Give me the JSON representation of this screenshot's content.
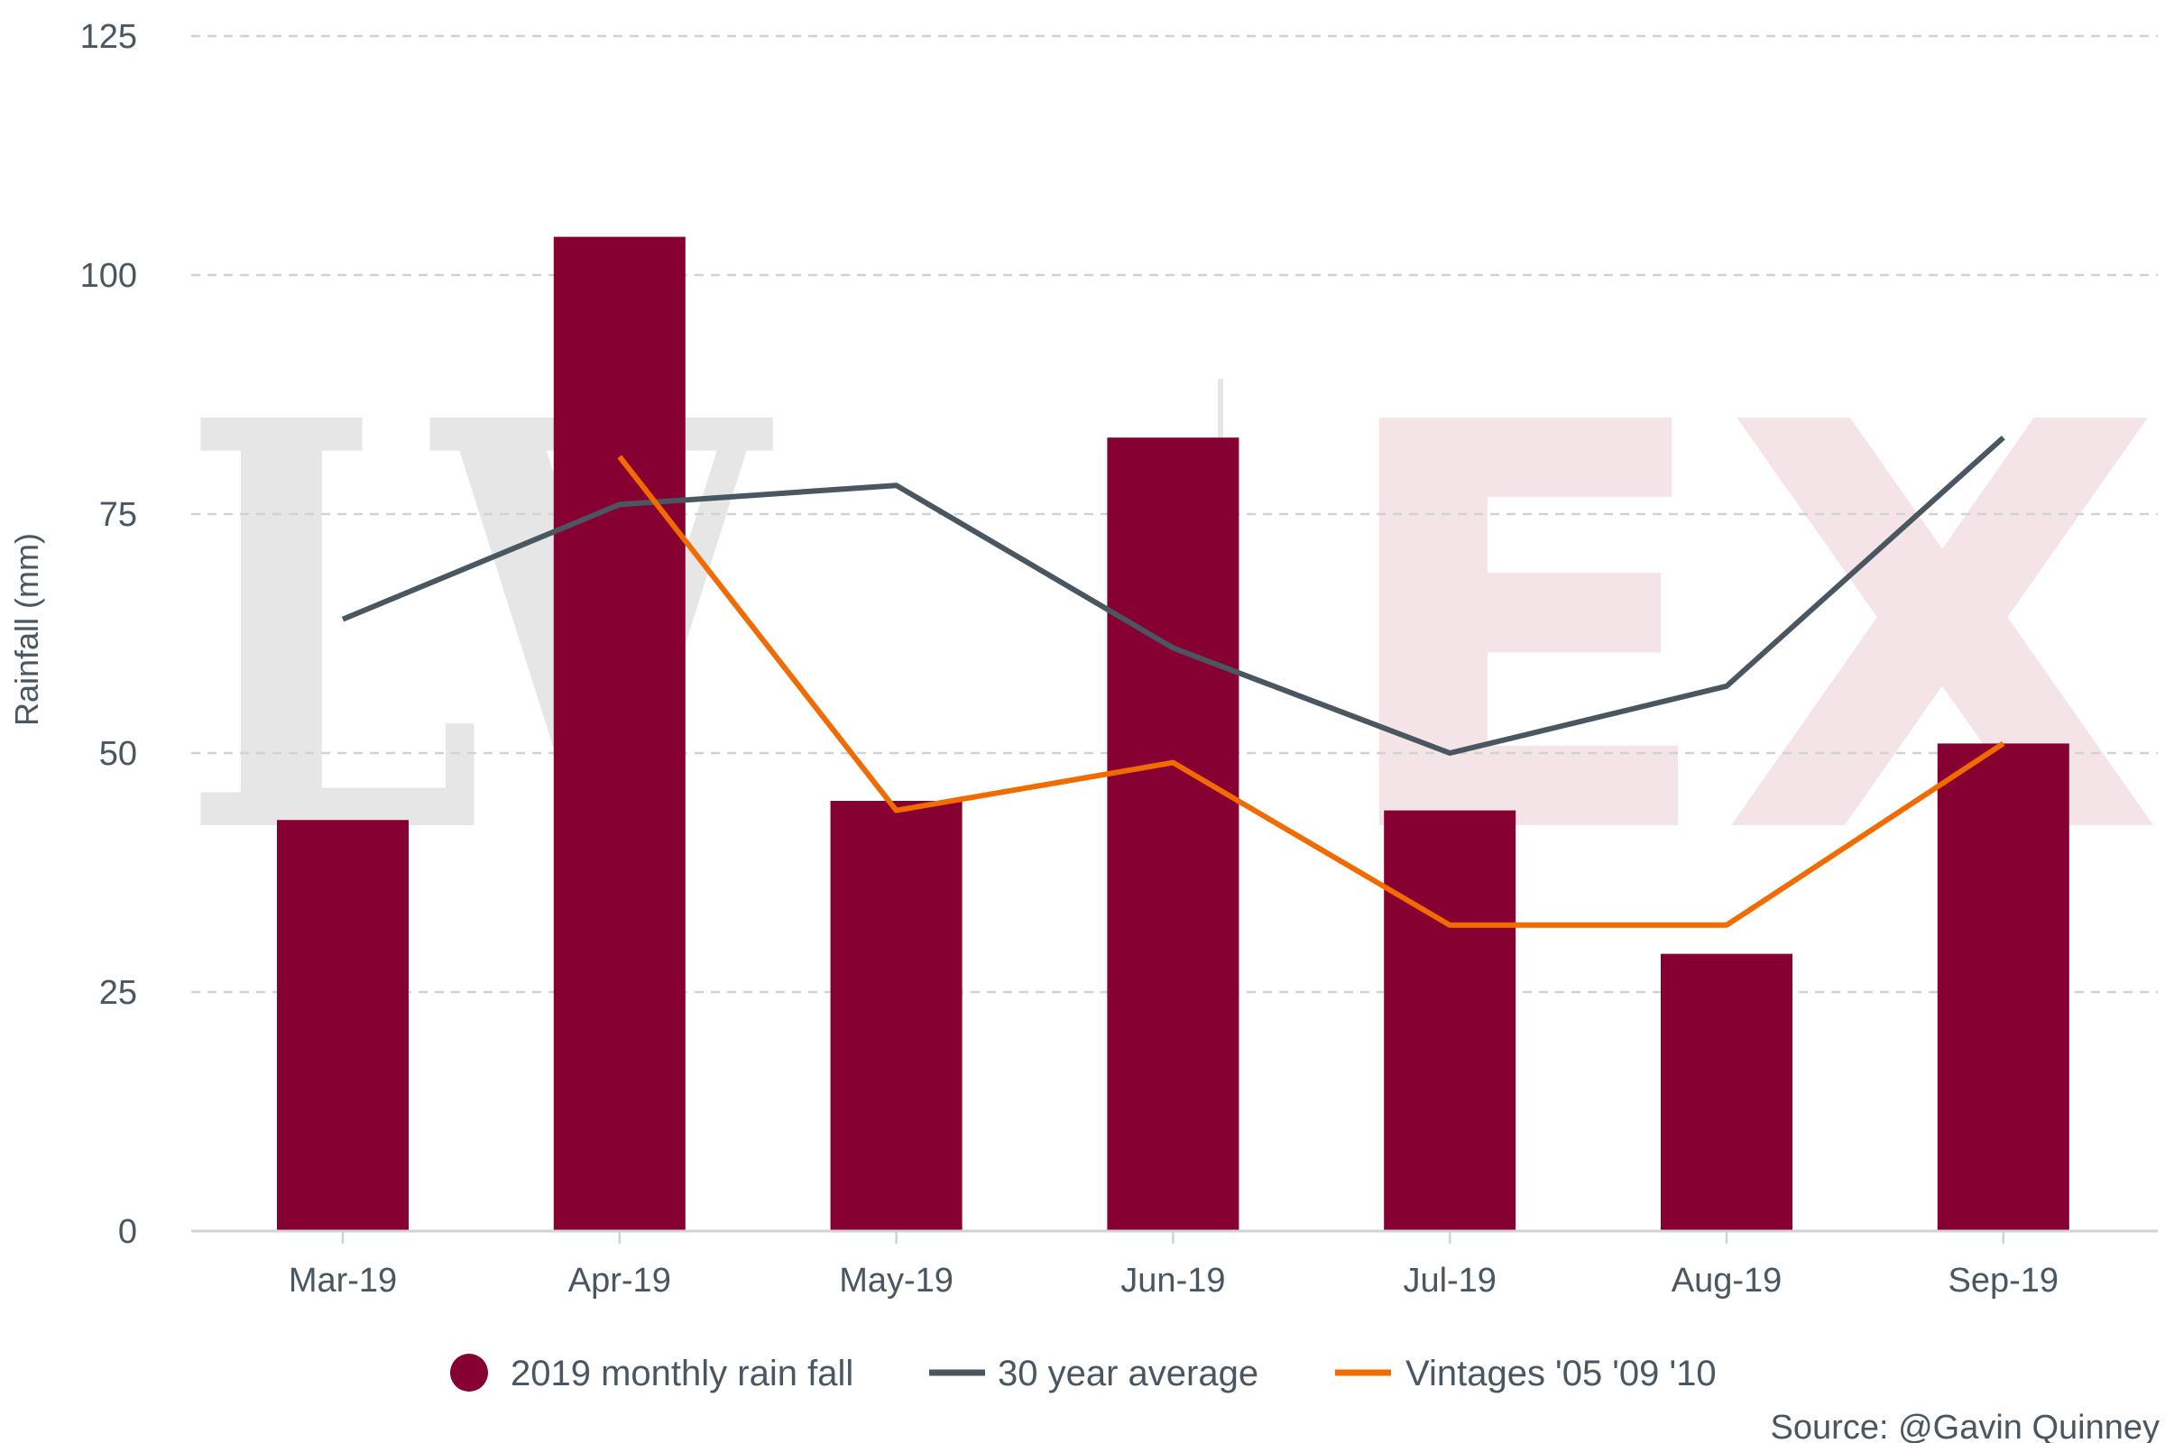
{
  "chart_data": {
    "type": "bar",
    "title": "",
    "categories": [
      "Mar-19",
      "Apr-19",
      "May-19",
      "Jun-19",
      "Jul-19",
      "Aug-19",
      "Sep-19"
    ],
    "series": [
      {
        "name": "2019 monthly rain fall",
        "kind": "bar",
        "color": "#860032",
        "values": [
          43,
          104,
          45,
          83,
          44,
          29,
          51
        ]
      },
      {
        "name": "30 year average",
        "kind": "line",
        "color": "#4a5660",
        "values": [
          64,
          76,
          78,
          61,
          50,
          57,
          83
        ]
      },
      {
        "name": "Vintages '05 '09 '10",
        "kind": "line",
        "color": "#f26b00",
        "values": [
          null,
          81,
          44,
          49,
          32,
          32,
          51
        ]
      }
    ],
    "xlabel": "",
    "ylabel": "Rainfall (mm)",
    "ylim": [
      0,
      125
    ],
    "yticks": [
      0,
      25,
      50,
      75,
      100,
      125
    ],
    "grid": true,
    "legend_position": "bottom",
    "watermark": "LIV-EX",
    "source": "Source: @Gavin Quinney"
  }
}
